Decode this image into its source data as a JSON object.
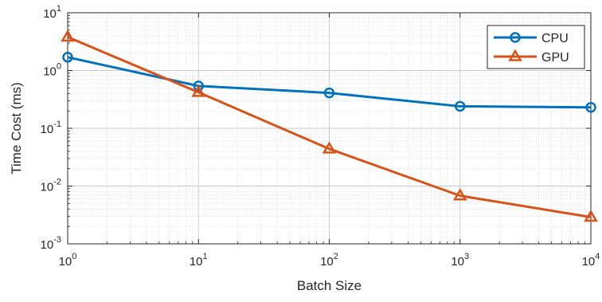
{
  "chart_data": {
    "type": "line",
    "xlabel": "Batch Size",
    "ylabel": "Time Cost (ms)",
    "xscale": "log",
    "yscale": "log",
    "xlim": [
      1,
      10000
    ],
    "ylim": [
      0.001,
      10
    ],
    "grid": true,
    "minor_grid": true,
    "legend_position": "top-right",
    "x_ticks": [
      {
        "value": 1,
        "base": "10",
        "exp": "0"
      },
      {
        "value": 10,
        "base": "10",
        "exp": "1"
      },
      {
        "value": 100,
        "base": "10",
        "exp": "2"
      },
      {
        "value": 1000,
        "base": "10",
        "exp": "3"
      },
      {
        "value": 10000,
        "base": "10",
        "exp": "4"
      }
    ],
    "y_ticks": [
      {
        "value": 0.001,
        "base": "10",
        "exp": "-3"
      },
      {
        "value": 0.01,
        "base": "10",
        "exp": "-2"
      },
      {
        "value": 0.1,
        "base": "10",
        "exp": "-1"
      },
      {
        "value": 1,
        "base": "10",
        "exp": "0"
      },
      {
        "value": 10,
        "base": "10",
        "exp": "1"
      }
    ],
    "x": [
      1,
      10,
      100,
      1000,
      10000
    ],
    "series": [
      {
        "name": "CPU",
        "marker": "circle",
        "color": "#0072BD",
        "values": [
          1.7,
          0.54,
          0.41,
          0.24,
          0.23
        ]
      },
      {
        "name": "GPU",
        "marker": "triangle",
        "color": "#D95319",
        "values": [
          3.8,
          0.42,
          0.044,
          0.0068,
          0.0029
        ]
      }
    ]
  }
}
